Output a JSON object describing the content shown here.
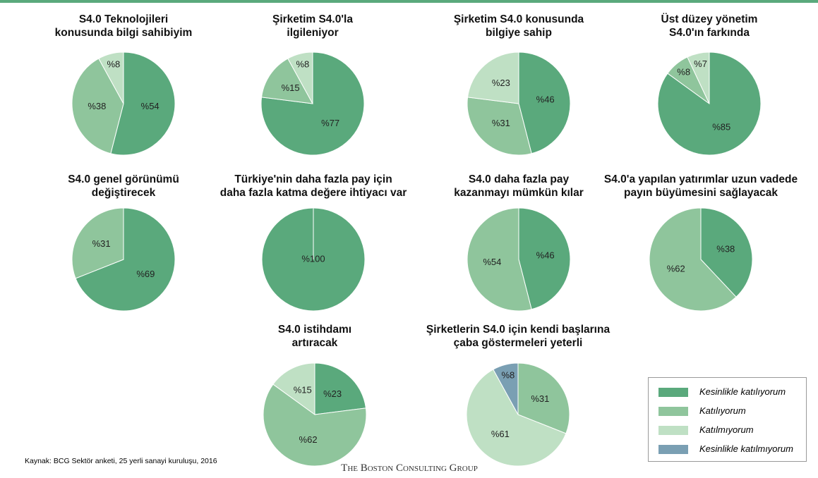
{
  "chart_data": [
    {
      "type": "pie",
      "title": "S4.0 Teknolojileri\nkonusunda bilgi sahibiyim",
      "values": [
        54,
        38,
        8,
        null
      ],
      "value_labels": [
        "%54",
        "%38",
        "%8",
        null
      ]
    },
    {
      "type": "pie",
      "title": "Şirketim S4.0'la\nilgileniyor",
      "values": [
        77,
        15,
        8,
        null
      ],
      "value_labels": [
        "%77",
        "%15",
        "%8",
        null
      ]
    },
    {
      "type": "pie",
      "title": "Şirketim S4.0 konusunda\nbilgiye sahip",
      "values": [
        46,
        31,
        23,
        null
      ],
      "value_labels": [
        "%46",
        "%31",
        "%23",
        null
      ]
    },
    {
      "type": "pie",
      "title": "Üst düzey yönetim\nS4.0'ın farkında",
      "values": [
        85,
        8,
        7,
        null
      ],
      "value_labels": [
        "%85",
        "%8",
        "%7",
        null
      ]
    },
    {
      "type": "pie",
      "title": "S4.0 genel görünümü\ndeğiştirecek",
      "values": [
        69,
        31,
        null,
        null
      ],
      "value_labels": [
        "%69",
        "%31",
        null,
        null
      ]
    },
    {
      "type": "pie",
      "title": "Türkiye'nin daha fazla pay için\ndaha fazla katma değere ihtiyacı var",
      "values": [
        100,
        null,
        null,
        null
      ],
      "value_labels": [
        "%100",
        null,
        null,
        null
      ]
    },
    {
      "type": "pie",
      "title": "S4.0 daha fazla pay\nkazanmayı mümkün kılar",
      "values": [
        46,
        54,
        null,
        null
      ],
      "value_labels": [
        "%46",
        "%54",
        null,
        null
      ]
    },
    {
      "type": "pie",
      "title": "S4.0'a yapılan yatırımlar uzun vadede\npayın büyümesini sağlayacak",
      "values": [
        38,
        62,
        null,
        null
      ],
      "value_labels": [
        "%38",
        "%62",
        null,
        null
      ]
    },
    {
      "type": "pie",
      "title": "S4.0 istihdamı\nartıracak",
      "values": [
        23,
        62,
        15,
        null
      ],
      "value_labels": [
        "%23",
        "%62",
        "%15",
        null
      ]
    },
    {
      "type": "pie",
      "title": "Şirketlerin S4.0 için kendi başlarına\nçaba göstermeleri yeterli",
      "values": [
        null,
        31,
        61,
        8
      ],
      "value_labels": [
        null,
        "%31",
        "%61",
        "%8"
      ]
    }
  ],
  "legend": {
    "labels": [
      "Kesinlikle katılıyorum",
      "Katılıyorum",
      "Katılmıyorum",
      "Kesinlikle katılmıyorum"
    ],
    "colors": [
      "#5aa97c",
      "#8fc59c",
      "#bfe0c4",
      "#7a9fb3"
    ]
  },
  "source": "Kaynak: BCG Sektör anketi, 25 yerli sanayi  kuruluşu, 2016",
  "footer": "The Boston Consulting Group"
}
